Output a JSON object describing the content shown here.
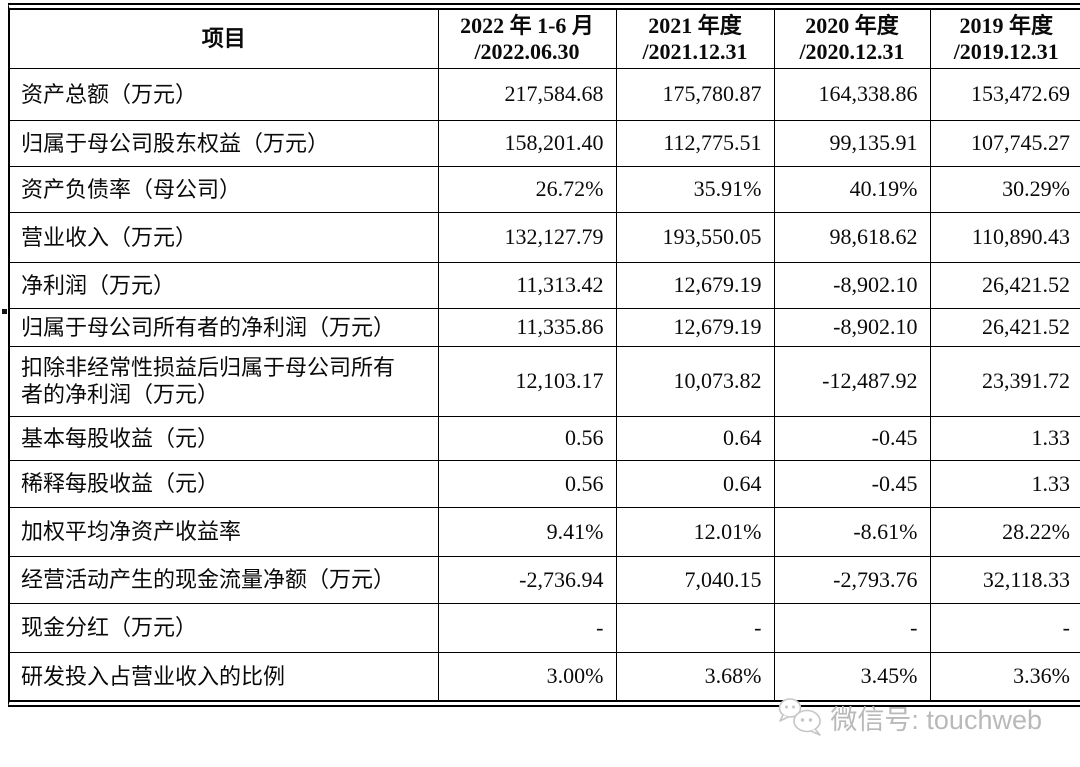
{
  "table": {
    "header": {
      "item_label": "项目",
      "periods": [
        {
          "line1": "2022 年 1-6 月",
          "line2": "/2022.06.30"
        },
        {
          "line1": "2021 年度",
          "line2": "/2021.12.31"
        },
        {
          "line1": "2020 年度",
          "line2": "/2020.12.31"
        },
        {
          "line1": "2019 年度",
          "line2": "/2019.12.31"
        }
      ]
    },
    "rows": [
      {
        "label": "资产总额（万元）",
        "values": [
          "217,584.68",
          "175,780.87",
          "164,338.86",
          "153,472.69"
        ]
      },
      {
        "label": "归属于母公司股东权益（万元）",
        "values": [
          "158,201.40",
          "112,775.51",
          "99,135.91",
          "107,745.27"
        ]
      },
      {
        "label": "资产负债率（母公司）",
        "values": [
          "26.72%",
          "35.91%",
          "40.19%",
          "30.29%"
        ]
      },
      {
        "label": "营业收入（万元）",
        "values": [
          "132,127.79",
          "193,550.05",
          "98,618.62",
          "110,890.43"
        ]
      },
      {
        "label": "净利润（万元）",
        "values": [
          "11,313.42",
          "12,679.19",
          "-8,902.10",
          "26,421.52"
        ]
      },
      {
        "label": "归属于母公司所有者的净利润（万元）",
        "values": [
          "11,335.86",
          "12,679.19",
          "-8,902.10",
          "26,421.52"
        ]
      },
      {
        "label": "扣除非经常性损益后归属于母公司所有者的净利润（万元）",
        "values": [
          "12,103.17",
          "10,073.82",
          "-12,487.92",
          "23,391.72"
        ]
      },
      {
        "label": "基本每股收益（元）",
        "values": [
          "0.56",
          "0.64",
          "-0.45",
          "1.33"
        ]
      },
      {
        "label": "稀释每股收益（元）",
        "values": [
          "0.56",
          "0.64",
          "-0.45",
          "1.33"
        ]
      },
      {
        "label": "加权平均净资产收益率",
        "values": [
          "9.41%",
          "12.01%",
          "-8.61%",
          "28.22%"
        ]
      },
      {
        "label": "经营活动产生的现金流量净额（万元）",
        "values": [
          "-2,736.94",
          "7,040.15",
          "-2,793.76",
          "32,118.33"
        ]
      },
      {
        "label": "现金分红（万元）",
        "values": [
          "-",
          "-",
          "-",
          "-"
        ]
      },
      {
        "label": "研发投入占营业收入的比例",
        "values": [
          "3.00%",
          "3.68%",
          "3.45%",
          "3.36%"
        ]
      }
    ]
  },
  "watermark": {
    "icon": "wechat-icon",
    "text": "微信号: touchweb"
  },
  "colors": {
    "border": "#000000",
    "text": "#0a0a0a",
    "watermark_gray": "#b9b9b9",
    "background": "#ffffff"
  }
}
